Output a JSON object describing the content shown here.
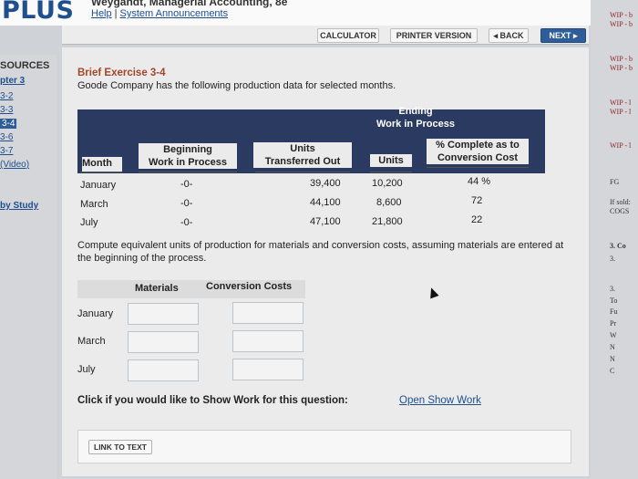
{
  "header": {
    "logo": "PLUS",
    "book_title": "Weygandt, Managerial Accounting, 8e",
    "help": "Help",
    "announcements": "System Announcements",
    "separator": "|"
  },
  "toolbar": {
    "calculator": "CALCULATOR",
    "printer_version": "PRINTER VERSION",
    "back": "◂ BACK",
    "next": "NEXT ▸"
  },
  "left_nav": {
    "heading": "SOURCES",
    "items": [
      "pter 3",
      "3-2",
      "3-3",
      "3-4",
      "3-6",
      "3-7",
      "(Video)",
      "by Study"
    ]
  },
  "right_nav": {
    "items": [
      "WIP - b",
      "WIP - b",
      "WIP - b",
      "WIP - b",
      "WIP - l",
      "WIP - l",
      "WIP - l",
      "FG",
      "If sold:",
      "COGS",
      "3. Co",
      "3.",
      "3.",
      "To",
      "Fu",
      "Pr",
      "W",
      "N",
      "N",
      "C"
    ]
  },
  "exercise": {
    "title": "Brief Exercise 3-4",
    "description": "Goode Company has the following production data for selected months.",
    "headers": {
      "ending_wip": [
        "Ending",
        "Work in Process"
      ],
      "month": "Month",
      "beginning_wip": [
        "Beginning",
        "Work in Process"
      ],
      "units_transferred": [
        "Units",
        "Transferred Out"
      ],
      "units": "Units",
      "pct_complete": [
        "% Complete as to",
        "Conversion Cost"
      ]
    },
    "rows": [
      {
        "month": "January",
        "beginning": "-0-",
        "transferred": "39,400",
        "units": "10,200",
        "pct": "44 %"
      },
      {
        "month": "March",
        "beginning": "-0-",
        "transferred": "44,100",
        "units": "8,600",
        "pct": "72"
      },
      {
        "month": "July",
        "beginning": "-0-",
        "transferred": "47,100",
        "units": "21,800",
        "pct": "22"
      }
    ],
    "question": "Compute equivalent units of production for materials and conversion costs, assuming materials are entered at the beginning of the process."
  },
  "answer": {
    "col_materials": "Materials",
    "col_conversion": "Conversion Costs",
    "rows": [
      {
        "label": "January",
        "materials": "",
        "conversion": ""
      },
      {
        "label": "March",
        "materials": "",
        "conversion": ""
      },
      {
        "label": "July",
        "materials": "",
        "conversion": ""
      }
    ]
  },
  "show_work": {
    "prompt": "Click if you would like to Show Work for this question:",
    "link": "Open Show Work"
  },
  "link_to_text": "LINK TO TEXT"
}
